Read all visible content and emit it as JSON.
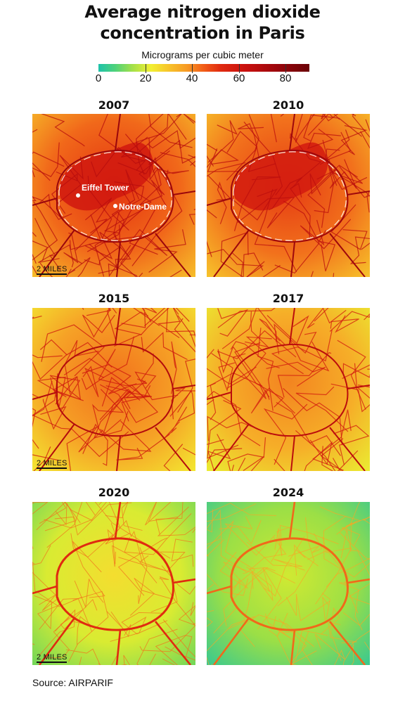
{
  "title_line1": "Average nitrogen dioxide",
  "title_line2": "concentration in Paris",
  "legend": {
    "label": "Micrograms per cubic meter",
    "ticks": [
      "0",
      "20",
      "40",
      "60",
      "80"
    ],
    "range": [
      0,
      90
    ]
  },
  "panels": [
    {
      "year": "2007",
      "mean_level": 45,
      "scale_label": "2 MILES",
      "landmarks": [
        "Eiffel Tower",
        "Notre-Dame"
      ]
    },
    {
      "year": "2010",
      "mean_level": 44
    },
    {
      "year": "2015",
      "mean_level": 38,
      "scale_label": "2 MILES"
    },
    {
      "year": "2017",
      "mean_level": 36
    },
    {
      "year": "2020",
      "mean_level": 22,
      "scale_label": "2 MILES"
    },
    {
      "year": "2024",
      "mean_level": 15
    }
  ],
  "source": "Source: AIRPARIF"
}
